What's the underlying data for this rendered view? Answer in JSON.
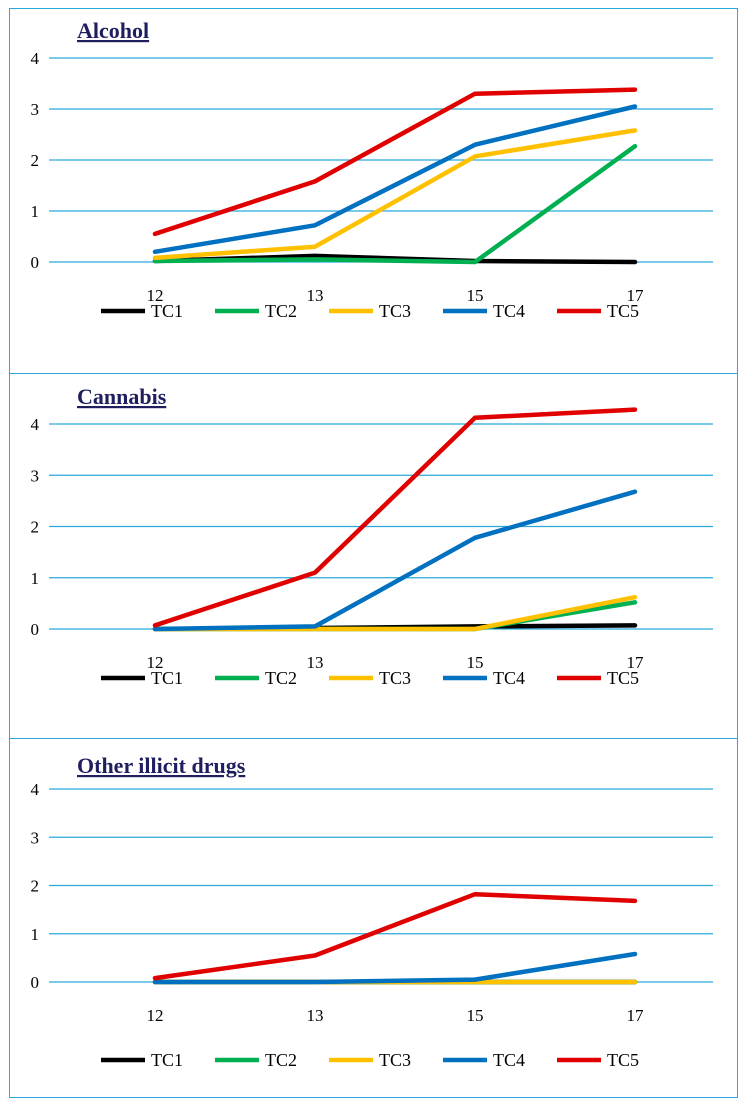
{
  "chart_data": [
    {
      "type": "line",
      "title": "Alcohol",
      "categories": [
        "12",
        "13",
        "15",
        "17"
      ],
      "ylim": [
        0,
        4
      ],
      "yticks": [
        "0",
        "1",
        "2",
        "3",
        "4"
      ],
      "grid": true,
      "legend_position": "bottom",
      "series": [
        {
          "name": "TC1",
          "color": "#000000",
          "values": [
            0.02,
            0.12,
            0.02,
            0.0
          ]
        },
        {
          "name": "TC2",
          "color": "#00b050",
          "values": [
            0.02,
            0.05,
            0.0,
            2.27
          ]
        },
        {
          "name": "TC3",
          "color": "#ffc000",
          "values": [
            0.08,
            0.3,
            2.07,
            2.58
          ]
        },
        {
          "name": "TC4",
          "color": "#0070c0",
          "values": [
            0.2,
            0.72,
            2.3,
            3.05
          ]
        },
        {
          "name": "TC5",
          "color": "#e00000",
          "values": [
            0.55,
            1.58,
            3.3,
            3.38
          ]
        }
      ]
    },
    {
      "type": "line",
      "title": "Cannabis",
      "categories": [
        "12",
        "13",
        "15",
        "17"
      ],
      "ylim": [
        0,
        4
      ],
      "yticks": [
        "0",
        "1",
        "2",
        "3",
        "4"
      ],
      "grid": true,
      "legend_position": "bottom",
      "series": [
        {
          "name": "TC1",
          "color": "#000000",
          "values": [
            0.0,
            0.02,
            0.05,
            0.07
          ]
        },
        {
          "name": "TC2",
          "color": "#00b050",
          "values": [
            0.0,
            0.0,
            0.0,
            0.52
          ]
        },
        {
          "name": "TC3",
          "color": "#ffc000",
          "values": [
            0.0,
            0.0,
            0.0,
            0.62
          ]
        },
        {
          "name": "TC4",
          "color": "#0070c0",
          "values": [
            0.0,
            0.05,
            1.78,
            2.68
          ]
        },
        {
          "name": "TC5",
          "color": "#e00000",
          "values": [
            0.07,
            1.1,
            4.12,
            4.28
          ]
        }
      ]
    },
    {
      "type": "line",
      "title": "Other illicit drugs",
      "categories": [
        "12",
        "13",
        "15",
        "17"
      ],
      "ylim": [
        0,
        4
      ],
      "yticks": [
        "0",
        "1",
        "2",
        "3",
        "4"
      ],
      "grid": true,
      "legend_position": "bottom",
      "series": [
        {
          "name": "TC1",
          "color": "#000000",
          "values": [
            0.0,
            0.0,
            0.0,
            0.0
          ]
        },
        {
          "name": "TC2",
          "color": "#00b050",
          "values": [
            0.0,
            0.0,
            0.0,
            0.0
          ]
        },
        {
          "name": "TC3",
          "color": "#ffc000",
          "values": [
            0.0,
            0.0,
            0.0,
            0.0
          ]
        },
        {
          "name": "TC4",
          "color": "#0070c0",
          "values": [
            0.0,
            0.0,
            0.05,
            0.58
          ]
        },
        {
          "name": "TC5",
          "color": "#e00000",
          "values": [
            0.08,
            0.55,
            1.82,
            1.68
          ]
        }
      ]
    }
  ]
}
